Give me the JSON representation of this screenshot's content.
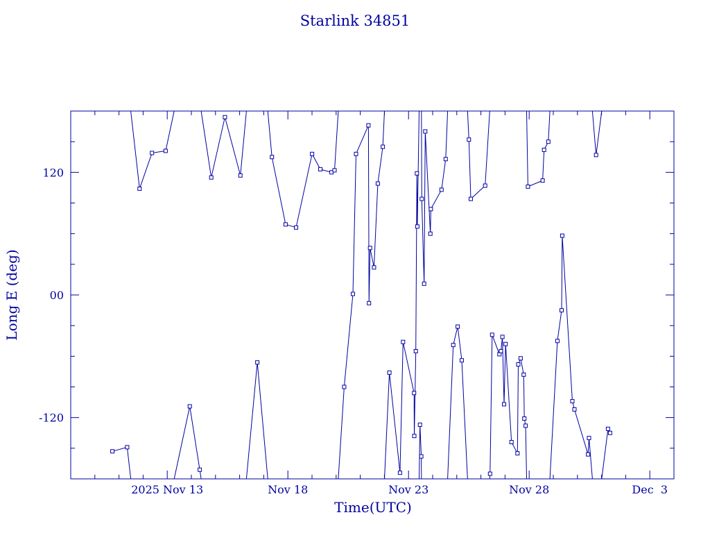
{
  "colors": {
    "ink": "#0000a0",
    "background": "#ffffff"
  },
  "chart_data": {
    "type": "scatter",
    "title": "Starlink 34851",
    "xlabel": "Time(UTC)",
    "ylabel": "Long E (deg)",
    "x_unit": "days",
    "xlim": [
      "2025-11-09T00:00",
      "2025-12-04T00:00"
    ],
    "ylim": [
      -180,
      180
    ],
    "x_ticks": [
      {
        "x": "2025-11-13",
        "label": "2025 Nov 13"
      },
      {
        "x": "2025-11-18",
        "label": "Nov 18"
      },
      {
        "x": "2025-11-23",
        "label": "Nov 23"
      },
      {
        "x": "2025-11-28",
        "label": "Nov 28"
      },
      {
        "x": "2025-12-03",
        "label": "Dec  3"
      }
    ],
    "y_ticks": [
      {
        "y": 120,
        "label": "120"
      },
      {
        "y": 0,
        "label": "00"
      },
      {
        "y": -120,
        "label": "-120"
      }
    ],
    "grid": false,
    "legend": "none",
    "series": [
      {
        "connected": true,
        "wrap": 180,
        "x": [
          "2025-11-10T17:25",
          "2025-11-11T08:09",
          "2025-11-11T20:29",
          "2025-11-12T08:50",
          "2025-11-12T22:25",
          "2025-11-13T22:24",
          "2025-11-14T08:21",
          "2025-11-14T19:49",
          "2025-11-15T09:24",
          "2025-11-16T00:45",
          "2025-11-16T17:36",
          "2025-11-17T08:09",
          "2025-11-17T21:44",
          "2025-11-18T08:09",
          "2025-11-19T00:04",
          "2025-11-19T08:16",
          "2025-11-19T19:24",
          "2025-11-19T22:25",
          "2025-11-20T07:58",
          "2025-11-20T16:42",
          "2025-11-20T19:47",
          "2025-11-21T08:09",
          "2025-11-21T08:43",
          "2025-11-21T09:44",
          "2025-11-21T13:38",
          "2025-11-21T17:26",
          "2025-11-21T22:25",
          "2025-11-22T05:00",
          "2025-11-22T15:31",
          "2025-11-22T18:33",
          "2025-11-23T05:30",
          "2025-11-23T05:45",
          "2025-11-23T07:15",
          "2025-11-23T08:21",
          "2025-11-23T08:44",
          "2025-11-23T11:23",
          "2025-11-23T12:42",
          "2025-11-23T13:11",
          "2025-11-23T15:31",
          "2025-11-23T16:37",
          "2025-11-23T21:44",
          "2025-11-23T22:13",
          "2025-11-24T08:50",
          "2025-11-24T12:56",
          "2025-11-24T20:29",
          "2025-11-25T00:52",
          "2025-11-25T05:00",
          "2025-11-25T12:06",
          "2025-11-25T13:56",
          "2025-11-26T04:14",
          "2025-11-26T09:06",
          "2025-11-26T11:12",
          "2025-11-26T18:24",
          "2025-11-26T19:54",
          "2025-11-26T21:23",
          "2025-11-26T23:04",
          "2025-11-27T00:33",
          "2025-11-27T06:26",
          "2025-11-27T12:21",
          "2025-11-27T13:11",
          "2025-11-27T15:30",
          "2025-11-27T18:33",
          "2025-11-27T19:11",
          "2025-11-27T20:29",
          "2025-11-27T22:47",
          "2025-11-28T13:21",
          "2025-11-28T14:49",
          "2025-11-28T19:00",
          "2025-11-29T04:03",
          "2025-11-29T08:16",
          "2025-11-29T08:55",
          "2025-11-29T19:00",
          "2025-11-29T21:02",
          "2025-11-30T10:32",
          "2025-11-30T11:32",
          "2025-11-30T18:33",
          "2025-12-01T06:26",
          "2025-12-01T08:27"
        ],
        "y": [
          -153,
          -149,
          104,
          139,
          141,
          -109,
          -171,
          115,
          174,
          117,
          -66,
          135,
          69,
          66,
          138,
          123,
          120,
          122,
          -90,
          1,
          138,
          166,
          -8,
          46,
          27,
          109,
          145,
          -76,
          -174,
          -46,
          -96,
          -138,
          -55,
          119,
          67,
          -127,
          -158,
          94,
          11,
          160,
          60,
          84,
          103,
          133,
          -49,
          -31,
          -64,
          152,
          94,
          107,
          -175,
          -39,
          -58,
          -55,
          -41,
          -107,
          -48,
          -144,
          -155,
          -68,
          -62,
          -78,
          -121,
          -128,
          106,
          112,
          142,
          150,
          -45,
          -15,
          58,
          -104,
          -112,
          -156,
          -140,
          137,
          -131,
          -135
        ]
      }
    ]
  }
}
